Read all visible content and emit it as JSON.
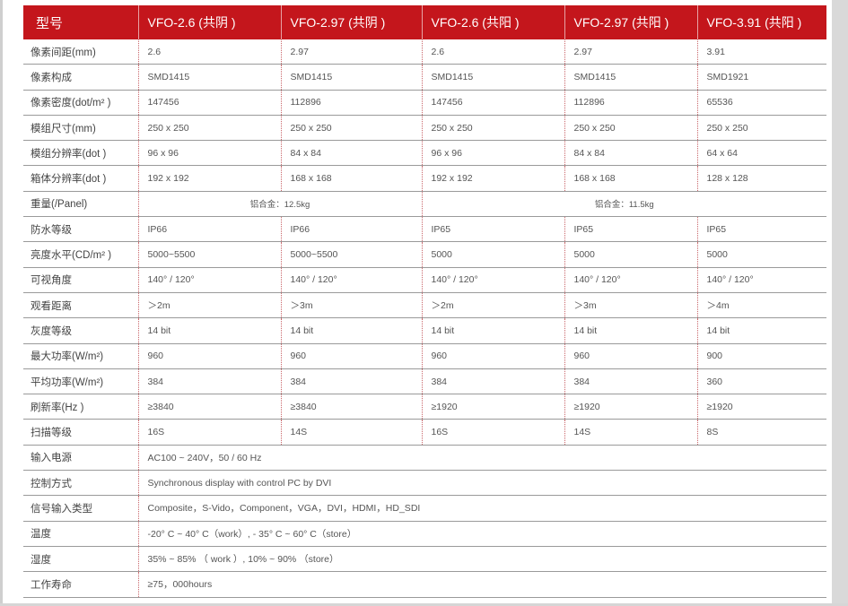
{
  "header": [
    "型号",
    "VFO-2.6 (共阴 )",
    "VFO-2.97 (共阴 )",
    "VFO-2.6 (共阳 )",
    "VFO-2.97 (共阳 )",
    "VFO-3.91 (共阳 )"
  ],
  "rows": [
    {
      "label": "像素间距(mm)",
      "cells": [
        "2.6",
        "2.97",
        "2.6",
        "2.97",
        "3.91"
      ]
    },
    {
      "label": "像素构成",
      "cells": [
        "SMD1415",
        "SMD1415",
        "SMD1415",
        "SMD1415",
        "SMD1921"
      ]
    },
    {
      "label": "像素密度(dot/m² )",
      "cells": [
        "147456",
        "112896",
        "147456",
        "112896",
        "65536"
      ]
    },
    {
      "label": "模组尺寸(mm)",
      "cells": [
        "250 x 250",
        "250 x 250",
        "250 x 250",
        "250 x 250",
        "250 x 250"
      ]
    },
    {
      "label": "模组分辨率(dot )",
      "cells": [
        "96 x 96",
        "84 x 84",
        "96 x 96",
        "84 x 84",
        "64 x 64"
      ]
    },
    {
      "label": "箱体分辨率(dot )",
      "cells": [
        "192 x 192",
        "168 x 168",
        "192 x 192",
        "168 x 168",
        "128 x 128"
      ]
    },
    {
      "label": "重量(/Panel)",
      "spans": [
        {
          "text": "铝合金：12.5kg",
          "cols": 2
        },
        {
          "text": "铝合金：11.5kg",
          "cols": 3
        }
      ]
    },
    {
      "label": "防水等级",
      "cells": [
        "IP66",
        "IP66",
        "IP65",
        "IP65",
        "IP65"
      ]
    },
    {
      "label": "亮度水平(CD/m² )",
      "cells": [
        "5000~5500",
        "5000~5500",
        "5000",
        "5000",
        "5000"
      ]
    },
    {
      "label": "可视角度",
      "cells": [
        "140° / 120°",
        "140° / 120°",
        "140° / 120°",
        "140° / 120°",
        "140° / 120°"
      ]
    },
    {
      "label": "观看距离",
      "cells": [
        "＞2m",
        "＞3m",
        "＞2m",
        "＞3m",
        "＞4m"
      ]
    },
    {
      "label": "灰度等级",
      "cells": [
        "14 bit",
        "14 bit",
        "14 bit",
        "14 bit",
        "14 bit"
      ]
    },
    {
      "label": "最大功率(W/m²)",
      "cells": [
        "960",
        "960",
        "960",
        "960",
        "900"
      ]
    },
    {
      "label": "平均功率(W/m²)",
      "cells": [
        "384",
        "384",
        "384",
        "384",
        "360"
      ]
    },
    {
      "label": "刷新率(Hz )",
      "cells": [
        "≥3840",
        "≥3840",
        "≥1920",
        "≥1920",
        "≥1920"
      ]
    },
    {
      "label": "扫描等级",
      "cells": [
        "16S",
        "14S",
        "16S",
        "14S",
        "8S"
      ]
    },
    {
      "label": "输入电源",
      "full": "AC100 ~ 240V，50 / 60 Hz"
    },
    {
      "label": "控制方式",
      "full": "Synchronous display with control PC by DVI"
    },
    {
      "label": "信号输入类型",
      "full": "Composite，S-Vido，Component，VGA，DVI，HDMI，HD_SDI"
    },
    {
      "label": "温度",
      "full": "-20° C ~ 40° C（work）, - 35° C ~ 60° C（store）"
    },
    {
      "label": "湿度",
      "full": "35% ~ 85% （ work ）, 10% ~ 90% （store）"
    },
    {
      "label": "工作寿命",
      "full": "≥75，000hours"
    }
  ],
  "colors": {
    "header_bg": "#c4161c",
    "header_text": "#ffffff"
  }
}
